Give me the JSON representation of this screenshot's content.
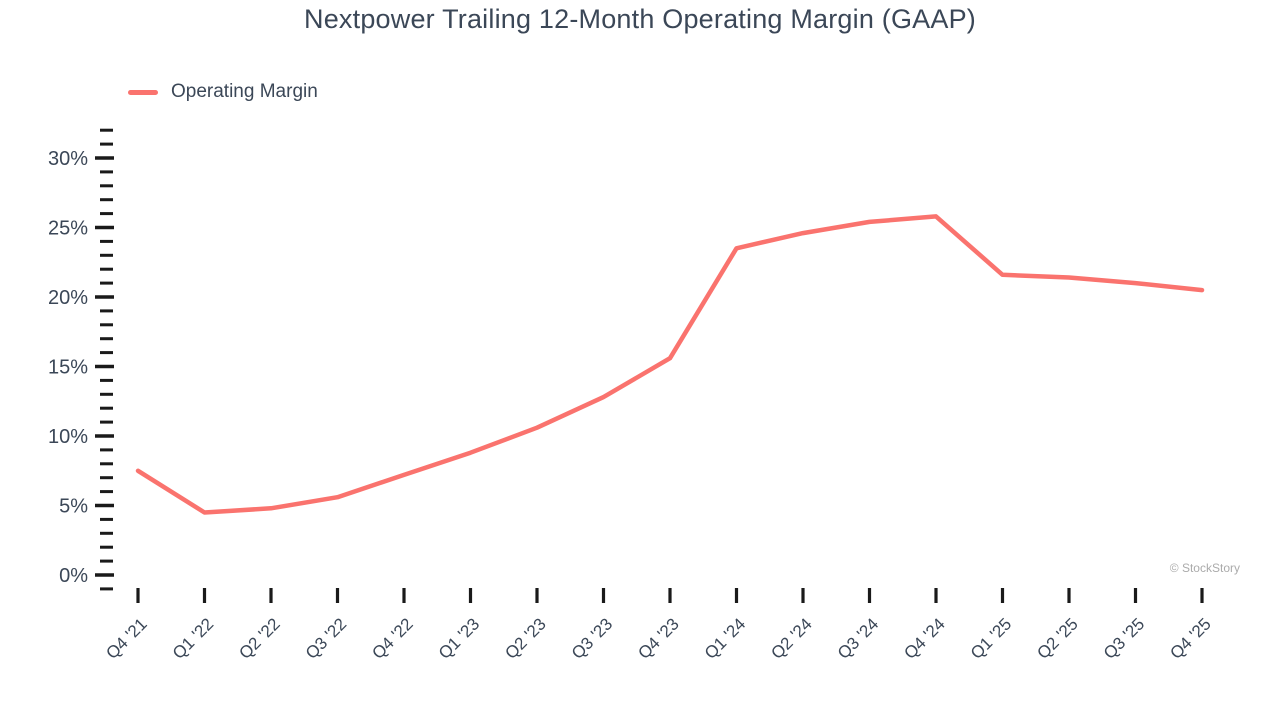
{
  "chart": {
    "title": "Nextpower Trailing 12-Month Operating Margin (GAAP)",
    "legend_label": "Operating Margin",
    "watermark": "© StockStory"
  },
  "chart_data": {
    "type": "line",
    "title": "Nextpower Trailing 12-Month Operating Margin (GAAP)",
    "xlabel": "",
    "ylabel": "",
    "categories": [
      "Q4 '21",
      "Q1 '22",
      "Q2 '22",
      "Q3 '22",
      "Q4 '22",
      "Q1 '23",
      "Q2 '23",
      "Q3 '23",
      "Q4 '23",
      "Q1 '24",
      "Q2 '24",
      "Q3 '24",
      "Q4 '24",
      "Q1 '25",
      "Q2 '25",
      "Q3 '25",
      "Q4 '25"
    ],
    "series": [
      {
        "name": "Operating Margin",
        "color": "#FA736E",
        "unit": "%",
        "values": [
          7.5,
          4.5,
          4.8,
          5.6,
          7.2,
          8.8,
          10.6,
          12.8,
          15.6,
          23.5,
          24.6,
          25.4,
          25.8,
          21.6,
          21.4,
          21.0,
          20.5
        ]
      }
    ],
    "y_axis": {
      "unit": "%",
      "range": [
        -1,
        32
      ],
      "major_ticks": [
        0,
        5,
        10,
        15,
        20,
        25,
        30
      ],
      "major_tick_labels": [
        "0%",
        "5%",
        "10%",
        "15%",
        "20%",
        "25%",
        "30%"
      ],
      "minor_tick_step": 1
    },
    "x_axis": {
      "tick_labels_rotated_degrees": 45
    },
    "grid": false,
    "legend_position": "top-left",
    "text_color": "#3B4757",
    "tick_color": "#1A1A1A",
    "watermark": "© StockStory"
  }
}
